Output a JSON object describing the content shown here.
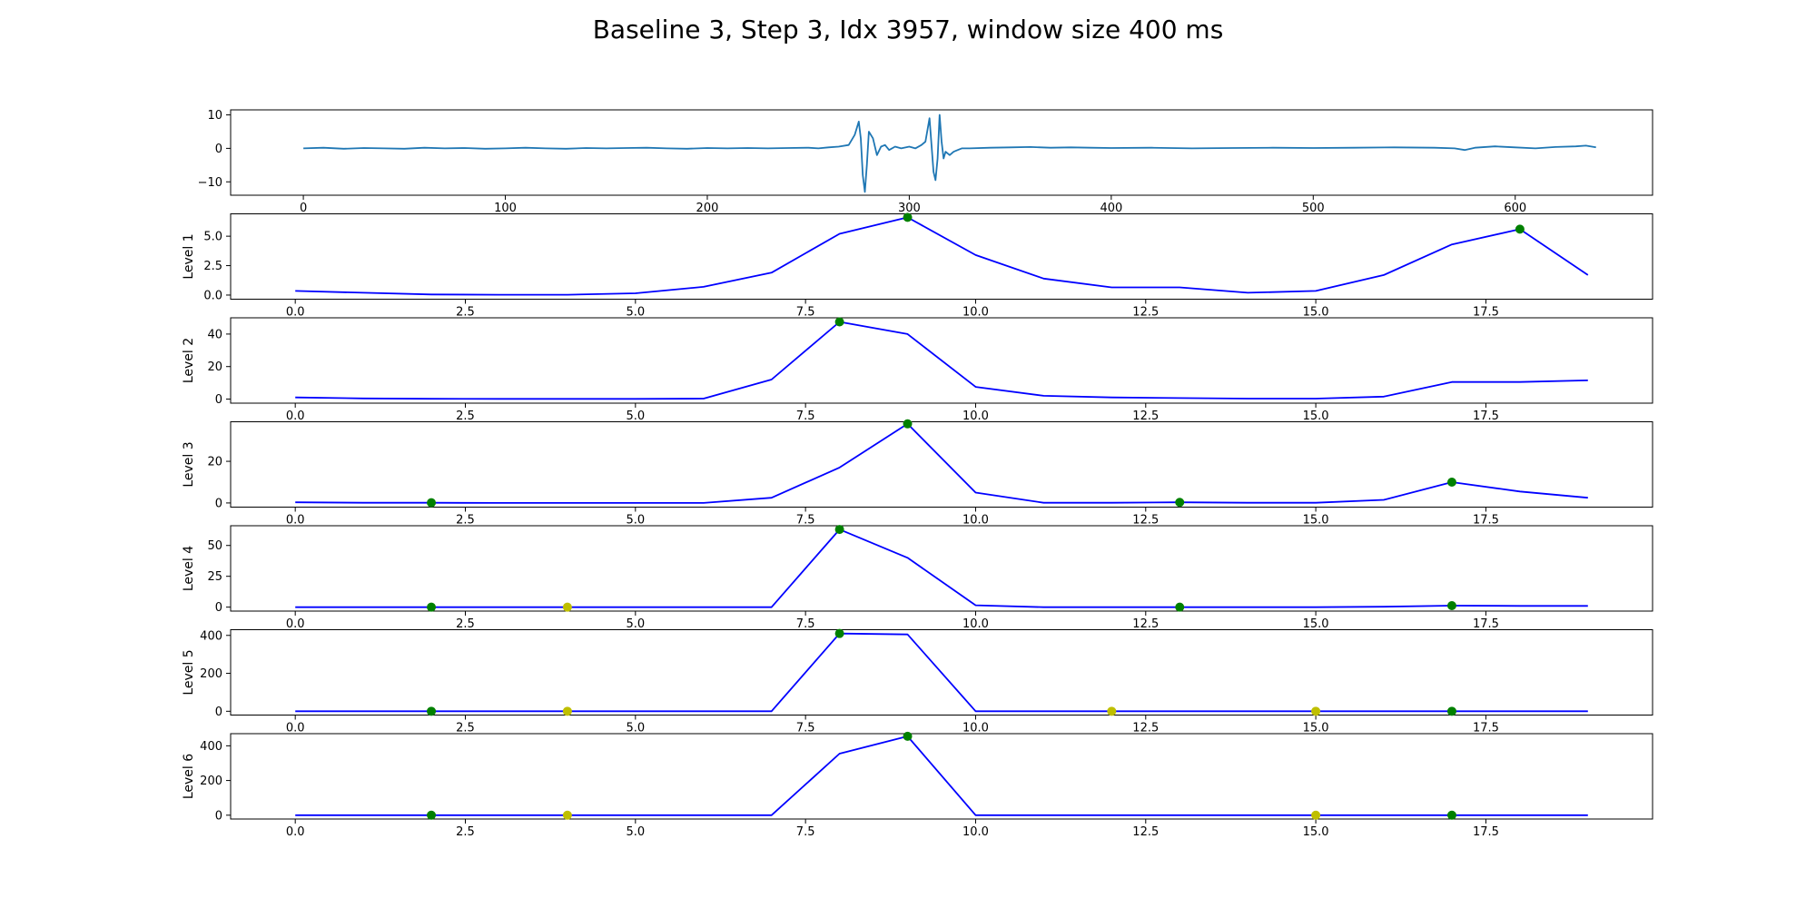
{
  "figure": {
    "title": "Baseline 3, Step 3, Idx 3957, window size 400 ms"
  },
  "chart_data": [
    {
      "type": "line",
      "ylabel": "",
      "xlim": [
        -36,
        668
      ],
      "ylim": [
        -14,
        11.5
      ],
      "xticks": [
        0,
        100,
        200,
        300,
        400,
        500,
        600
      ],
      "xtick_labels": [
        "0",
        "100",
        "200",
        "300",
        "400",
        "500",
        "600"
      ],
      "yticks": [
        -10,
        0,
        10
      ],
      "ytick_labels": [
        "−10",
        "0",
        "10"
      ],
      "line_color": "#1f77b4",
      "series": [
        {
          "x": [
            0,
            10,
            20,
            30,
            40,
            50,
            60,
            70,
            80,
            90,
            100,
            110,
            120,
            130,
            140,
            150,
            160,
            170,
            180,
            190,
            200,
            210,
            220,
            230,
            240,
            250,
            255,
            260,
            265,
            270,
            273,
            275,
            276,
            277,
            278,
            279,
            280,
            282,
            284,
            286,
            288,
            290,
            293,
            296,
            300,
            303,
            306,
            308,
            310,
            311,
            312,
            313,
            314,
            315,
            316,
            317,
            318,
            320,
            322,
            324,
            326,
            330,
            340,
            350,
            360,
            370,
            380,
            390,
            400,
            420,
            440,
            460,
            480,
            500,
            520,
            540,
            560,
            570,
            575,
            580,
            590,
            600,
            610,
            620,
            630,
            635,
            640
          ],
          "y": [
            0,
            0.2,
            -0.1,
            0.1,
            0,
            -0.1,
            0.2,
            0,
            0.1,
            -0.1,
            0,
            0.2,
            0,
            -0.1,
            0.1,
            0,
            0.1,
            0.2,
            0,
            -0.1,
            0.1,
            0,
            0.1,
            0,
            0.1,
            0.2,
            0,
            0.3,
            0.5,
            1,
            4,
            8,
            3,
            -8,
            -13,
            -5,
            5,
            3,
            -2,
            0.5,
            1,
            -0.5,
            0.5,
            0,
            0.5,
            0,
            1,
            2,
            9,
            1,
            -7,
            -9.5,
            -3,
            10,
            2,
            -3,
            -1,
            -2,
            -1,
            -0.5,
            0,
            0,
            0.2,
            0.3,
            0.4,
            0.2,
            0.3,
            0.2,
            0.1,
            0.2,
            0,
            0.1,
            0.2,
            0.1,
            0.2,
            0.3,
            0.2,
            0,
            -0.5,
            0.2,
            0.6,
            0.3,
            0,
            0.4,
            0.6,
            0.8,
            0.3
          ]
        }
      ]
    },
    {
      "type": "line",
      "ylabel": "Level 1",
      "xlim": [
        -0.95,
        19.95
      ],
      "ylim": [
        -0.35,
        6.9
      ],
      "xticks": [
        0,
        2.5,
        5,
        7.5,
        10,
        12.5,
        15,
        17.5
      ],
      "xtick_labels": [
        "0.0",
        "2.5",
        "5.0",
        "7.5",
        "10.0",
        "12.5",
        "15.0",
        "17.5"
      ],
      "yticks": [
        0,
        2.5,
        5
      ],
      "ytick_labels": [
        "0.0",
        "2.5",
        "5.0"
      ],
      "line_color": "#0000ff",
      "series": [
        {
          "x": [
            0,
            1,
            2,
            3,
            4,
            5,
            6,
            7,
            8,
            9,
            10,
            11,
            12,
            13,
            14,
            15,
            16,
            17,
            18,
            19
          ],
          "y": [
            0.35,
            0.2,
            0.05,
            0.03,
            0.03,
            0.15,
            0.7,
            1.9,
            5.2,
            6.6,
            3.4,
            1.4,
            0.65,
            0.65,
            0.2,
            0.35,
            1.7,
            4.3,
            5.6,
            1.7
          ]
        }
      ],
      "markers": [
        {
          "x": 9,
          "y": 6.6,
          "color": "#008000"
        },
        {
          "x": 18,
          "y": 5.6,
          "color": "#008000"
        }
      ]
    },
    {
      "type": "line",
      "ylabel": "Level 2",
      "xlim": [
        -0.95,
        19.95
      ],
      "ylim": [
        -2.5,
        50
      ],
      "xticks": [
        0,
        2.5,
        5,
        7.5,
        10,
        12.5,
        15,
        17.5
      ],
      "xtick_labels": [
        "0.0",
        "2.5",
        "5.0",
        "7.5",
        "10.0",
        "12.5",
        "15.0",
        "17.5"
      ],
      "yticks": [
        0,
        20,
        40
      ],
      "ytick_labels": [
        "0",
        "20",
        "40"
      ],
      "line_color": "#0000ff",
      "series": [
        {
          "x": [
            0,
            1,
            2,
            3,
            4,
            5,
            6,
            7,
            8,
            9,
            10,
            11,
            12,
            13,
            14,
            15,
            16,
            17,
            18,
            19
          ],
          "y": [
            1,
            0.4,
            0.2,
            0.1,
            0.1,
            0.1,
            0.3,
            12,
            47.5,
            40,
            7.5,
            2,
            1,
            0.6,
            0.3,
            0.3,
            1.5,
            10.5,
            10.5,
            11.5
          ]
        }
      ],
      "markers": [
        {
          "x": 8,
          "y": 47.5,
          "color": "#008000"
        }
      ]
    },
    {
      "type": "line",
      "ylabel": "Level 3",
      "xlim": [
        -0.95,
        19.95
      ],
      "ylim": [
        -2,
        39
      ],
      "xticks": [
        0,
        2.5,
        5,
        7.5,
        10,
        12.5,
        15,
        17.5
      ],
      "xtick_labels": [
        "0.0",
        "2.5",
        "5.0",
        "7.5",
        "10.0",
        "12.5",
        "15.0",
        "17.5"
      ],
      "yticks": [
        0,
        20
      ],
      "ytick_labels": [
        "0",
        "20"
      ],
      "line_color": "#0000ff",
      "series": [
        {
          "x": [
            0,
            1,
            2,
            3,
            4,
            5,
            6,
            7,
            8,
            9,
            10,
            11,
            12,
            13,
            14,
            15,
            16,
            17,
            18,
            19
          ],
          "y": [
            0.3,
            0.1,
            0.1,
            0,
            0,
            0,
            0,
            2.5,
            17,
            38,
            5,
            0.1,
            0.1,
            0.3,
            0.1,
            0.1,
            1.5,
            10,
            5.5,
            2.5
          ]
        }
      ],
      "markers": [
        {
          "x": 2,
          "y": 0.1,
          "color": "#008000"
        },
        {
          "x": 9,
          "y": 38,
          "color": "#008000"
        },
        {
          "x": 13,
          "y": 0.3,
          "color": "#008000"
        },
        {
          "x": 17,
          "y": 10,
          "color": "#008000"
        }
      ]
    },
    {
      "type": "line",
      "ylabel": "Level 4",
      "xlim": [
        -0.95,
        19.95
      ],
      "ylim": [
        -3.2,
        66
      ],
      "xticks": [
        0,
        2.5,
        5,
        7.5,
        10,
        12.5,
        15,
        17.5
      ],
      "xtick_labels": [
        "0.0",
        "2.5",
        "5.0",
        "7.5",
        "10.0",
        "12.5",
        "15.0",
        "17.5"
      ],
      "yticks": [
        0,
        25,
        50
      ],
      "ytick_labels": [
        "0",
        "25",
        "50"
      ],
      "line_color": "#0000ff",
      "series": [
        {
          "x": [
            0,
            1,
            2,
            3,
            4,
            5,
            6,
            7,
            8,
            9,
            10,
            11,
            12,
            13,
            14,
            15,
            16,
            17,
            18,
            19
          ],
          "y": [
            0,
            0,
            0,
            0,
            0,
            0,
            0,
            0,
            63,
            40,
            1.5,
            0,
            0,
            0,
            0,
            0,
            0.3,
            1.2,
            1,
            1
          ]
        }
      ],
      "markers": [
        {
          "x": 2,
          "y": 0,
          "color": "#008000"
        },
        {
          "x": 4,
          "y": 0,
          "color": "#bfbf00"
        },
        {
          "x": 8,
          "y": 63,
          "color": "#008000"
        },
        {
          "x": 13,
          "y": 0,
          "color": "#008000"
        },
        {
          "x": 17,
          "y": 1.2,
          "color": "#008000"
        }
      ]
    },
    {
      "type": "line",
      "ylabel": "Level 5",
      "xlim": [
        -0.95,
        19.95
      ],
      "ylim": [
        -20,
        430
      ],
      "xticks": [
        0,
        2.5,
        5,
        7.5,
        10,
        12.5,
        15,
        17.5
      ],
      "xtick_labels": [
        "0.0",
        "2.5",
        "5.0",
        "7.5",
        "10.0",
        "12.5",
        "15.0",
        "17.5"
      ],
      "yticks": [
        0,
        200,
        400
      ],
      "ytick_labels": [
        "0",
        "200",
        "400"
      ],
      "line_color": "#0000ff",
      "series": [
        {
          "x": [
            0,
            1,
            2,
            3,
            4,
            5,
            6,
            7,
            8,
            9,
            10,
            11,
            12,
            13,
            14,
            15,
            16,
            17,
            18,
            19
          ],
          "y": [
            0,
            0,
            0,
            0,
            0,
            0,
            0,
            0,
            410,
            405,
            0,
            0,
            0,
            0,
            0,
            0,
            0,
            0,
            0,
            0
          ]
        }
      ],
      "markers": [
        {
          "x": 2,
          "y": 0,
          "color": "#008000"
        },
        {
          "x": 4,
          "y": 0,
          "color": "#bfbf00"
        },
        {
          "x": 8,
          "y": 410,
          "color": "#008000"
        },
        {
          "x": 12,
          "y": 0,
          "color": "#bfbf00"
        },
        {
          "x": 15,
          "y": 0,
          "color": "#bfbf00"
        },
        {
          "x": 17,
          "y": 0,
          "color": "#008000"
        }
      ]
    },
    {
      "type": "line",
      "ylabel": "Level 6",
      "xlim": [
        -0.95,
        19.95
      ],
      "ylim": [
        -22,
        470
      ],
      "xticks": [
        0,
        2.5,
        5,
        7.5,
        10,
        12.5,
        15,
        17.5
      ],
      "xtick_labels": [
        "0.0",
        "2.5",
        "5.0",
        "7.5",
        "10.0",
        "12.5",
        "15.0",
        "17.5"
      ],
      "yticks": [
        0,
        200,
        400
      ],
      "ytick_labels": [
        "0",
        "200",
        "400"
      ],
      "line_color": "#0000ff",
      "series": [
        {
          "x": [
            0,
            1,
            2,
            3,
            4,
            5,
            6,
            7,
            8,
            9,
            10,
            11,
            12,
            13,
            14,
            15,
            16,
            17,
            18,
            19
          ],
          "y": [
            0,
            0,
            0,
            0,
            0,
            0,
            0,
            0,
            355,
            455,
            0,
            0,
            0,
            0,
            0,
            0,
            0,
            0,
            0,
            0
          ]
        }
      ],
      "markers": [
        {
          "x": 2,
          "y": 0,
          "color": "#008000"
        },
        {
          "x": 4,
          "y": 0,
          "color": "#bfbf00"
        },
        {
          "x": 9,
          "y": 455,
          "color": "#008000"
        },
        {
          "x": 15,
          "y": 0,
          "color": "#bfbf00"
        },
        {
          "x": 17,
          "y": 0,
          "color": "#008000"
        }
      ]
    }
  ]
}
